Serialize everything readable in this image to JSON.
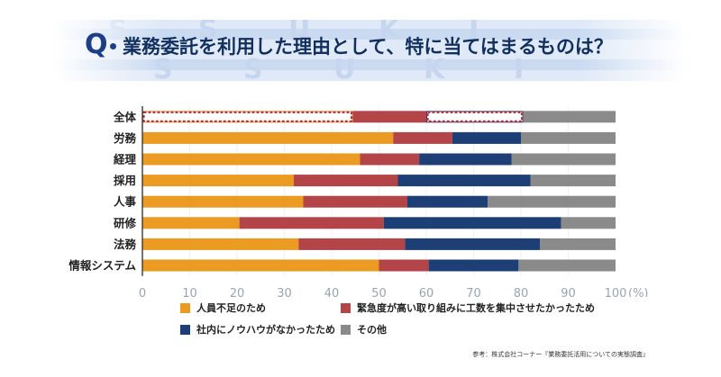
{
  "banner": {
    "q_letter": "Q",
    "question": "業務委託を利用した理由として、特に当てはまるものは？",
    "bg_letters": [
      "S",
      "S",
      "U",
      "K",
      "I",
      "S",
      "S",
      "U",
      "K",
      "I"
    ]
  },
  "chart_data": {
    "type": "bar",
    "stacked": true,
    "orientation": "horizontal",
    "title": "業務委託を利用した理由として、特に当てはまるものは？",
    "xlabel": "(%)",
    "xlim": [
      0,
      100
    ],
    "x_ticks": [
      "0",
      "10",
      "20",
      "30",
      "40",
      "50",
      "60",
      "70",
      "80",
      "90",
      "100"
    ],
    "unit_label": "(%)",
    "categories": [
      "全体",
      "労務",
      "経理",
      "採用",
      "人事",
      "研修",
      "法務",
      "情報システム"
    ],
    "series": [
      {
        "name": "人員不足のため",
        "color": "#eb9a22",
        "values": [
          44.5,
          53,
          46,
          32,
          34,
          20.5,
          33,
          50
        ]
      },
      {
        "name": "緊急度が高い取り組みに工数を集中させたかったため",
        "color": "#b34448",
        "values": [
          15.5,
          12.5,
          12.5,
          22,
          22,
          30.5,
          22.5,
          10.5
        ]
      },
      {
        "name": "社内にノウハウがなかったため",
        "color": "#1d3f76",
        "values": [
          20.5,
          14.5,
          19.5,
          28,
          17,
          37.5,
          28.5,
          19
        ]
      },
      {
        "name": "その他",
        "color": "#8a8a8a",
        "values": [
          19.5,
          20,
          22,
          18,
          27,
          11.5,
          16,
          20.5
        ]
      }
    ],
    "highlight": "全体"
  },
  "source": "参考：株式会社コーナー『業務委託活用についての実態調査』"
}
